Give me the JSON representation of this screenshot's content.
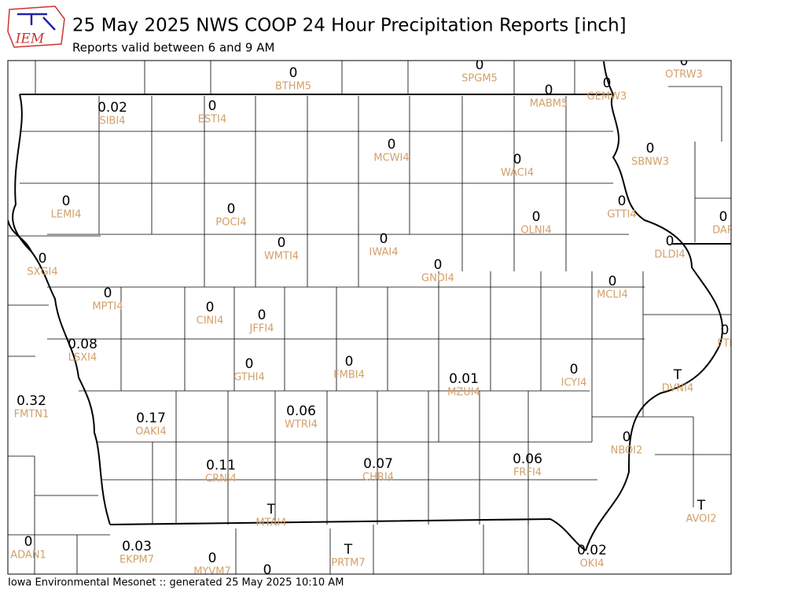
{
  "header": {
    "logo": "IEM",
    "title": "25 May 2025 NWS COOP 24 Hour Precipitation Reports [inch]",
    "subtitle": "Reports valid between 6 and 9 AM"
  },
  "stations": [
    {
      "value": "0",
      "id": "BTHM5"
    },
    {
      "value": "0",
      "id": "SPGM5"
    },
    {
      "value": "0",
      "id": "OTRW3"
    },
    {
      "value": "0",
      "id": "MABM5"
    },
    {
      "value": "0",
      "id": "GEMW3"
    },
    {
      "value": "0.02",
      "id": "SIBI4"
    },
    {
      "value": "0",
      "id": "ESTI4"
    },
    {
      "value": "0",
      "id": "MCWI4"
    },
    {
      "value": "0",
      "id": "WACI4"
    },
    {
      "value": "0",
      "id": "SBNW3"
    },
    {
      "value": "0",
      "id": "LEMI4"
    },
    {
      "value": "0",
      "id": "POCI4"
    },
    {
      "value": "0",
      "id": "GTTI4"
    },
    {
      "value": "0",
      "id": "OLNI4"
    },
    {
      "value": "0",
      "id": "DAR"
    },
    {
      "value": "0",
      "id": "WMTI4"
    },
    {
      "value": "0",
      "id": "IWAI4"
    },
    {
      "value": "0",
      "id": "DLDI4"
    },
    {
      "value": "0",
      "id": "GNDI4"
    },
    {
      "value": "0",
      "id": "SXGI4"
    },
    {
      "value": "0",
      "id": "MPTI4"
    },
    {
      "value": "0",
      "id": "MCLI4"
    },
    {
      "value": "0",
      "id": "CINI4"
    },
    {
      "value": "0",
      "id": "JFFI4"
    },
    {
      "value": "0",
      "id": "FTI"
    },
    {
      "value": "0.08",
      "id": "LSXI4"
    },
    {
      "value": "0",
      "id": "FMBI4"
    },
    {
      "value": "0",
      "id": "GTHI4"
    },
    {
      "value": "0",
      "id": "ICYI4"
    },
    {
      "value": "T",
      "id": "DVNI4"
    },
    {
      "value": "0.01",
      "id": "MZUI4"
    },
    {
      "value": "0.32",
      "id": "FMTN1"
    },
    {
      "value": "0.17",
      "id": "OAKI4"
    },
    {
      "value": "0.06",
      "id": "WTRI4"
    },
    {
      "value": "0",
      "id": "NBOI2"
    },
    {
      "value": "0.11",
      "id": "CRNI4"
    },
    {
      "value": "0.07",
      "id": "CHRI4"
    },
    {
      "value": "0.06",
      "id": "FRFI4"
    },
    {
      "value": "T",
      "id": "MTAI4"
    },
    {
      "value": "T",
      "id": "AVOI2"
    },
    {
      "value": "0",
      "id": "ADAN1"
    },
    {
      "value": "0.03",
      "id": "EKPM7"
    },
    {
      "value": "0",
      "id": "MYVM7"
    },
    {
      "value": "0"
    },
    {
      "value": "T",
      "id": "PRTM7"
    },
    {
      "value": "0.02",
      "id": "OKI4"
    }
  ],
  "footer": "Iowa Environmental Mesonet :: generated 25 May 2025 10:10 AM"
}
